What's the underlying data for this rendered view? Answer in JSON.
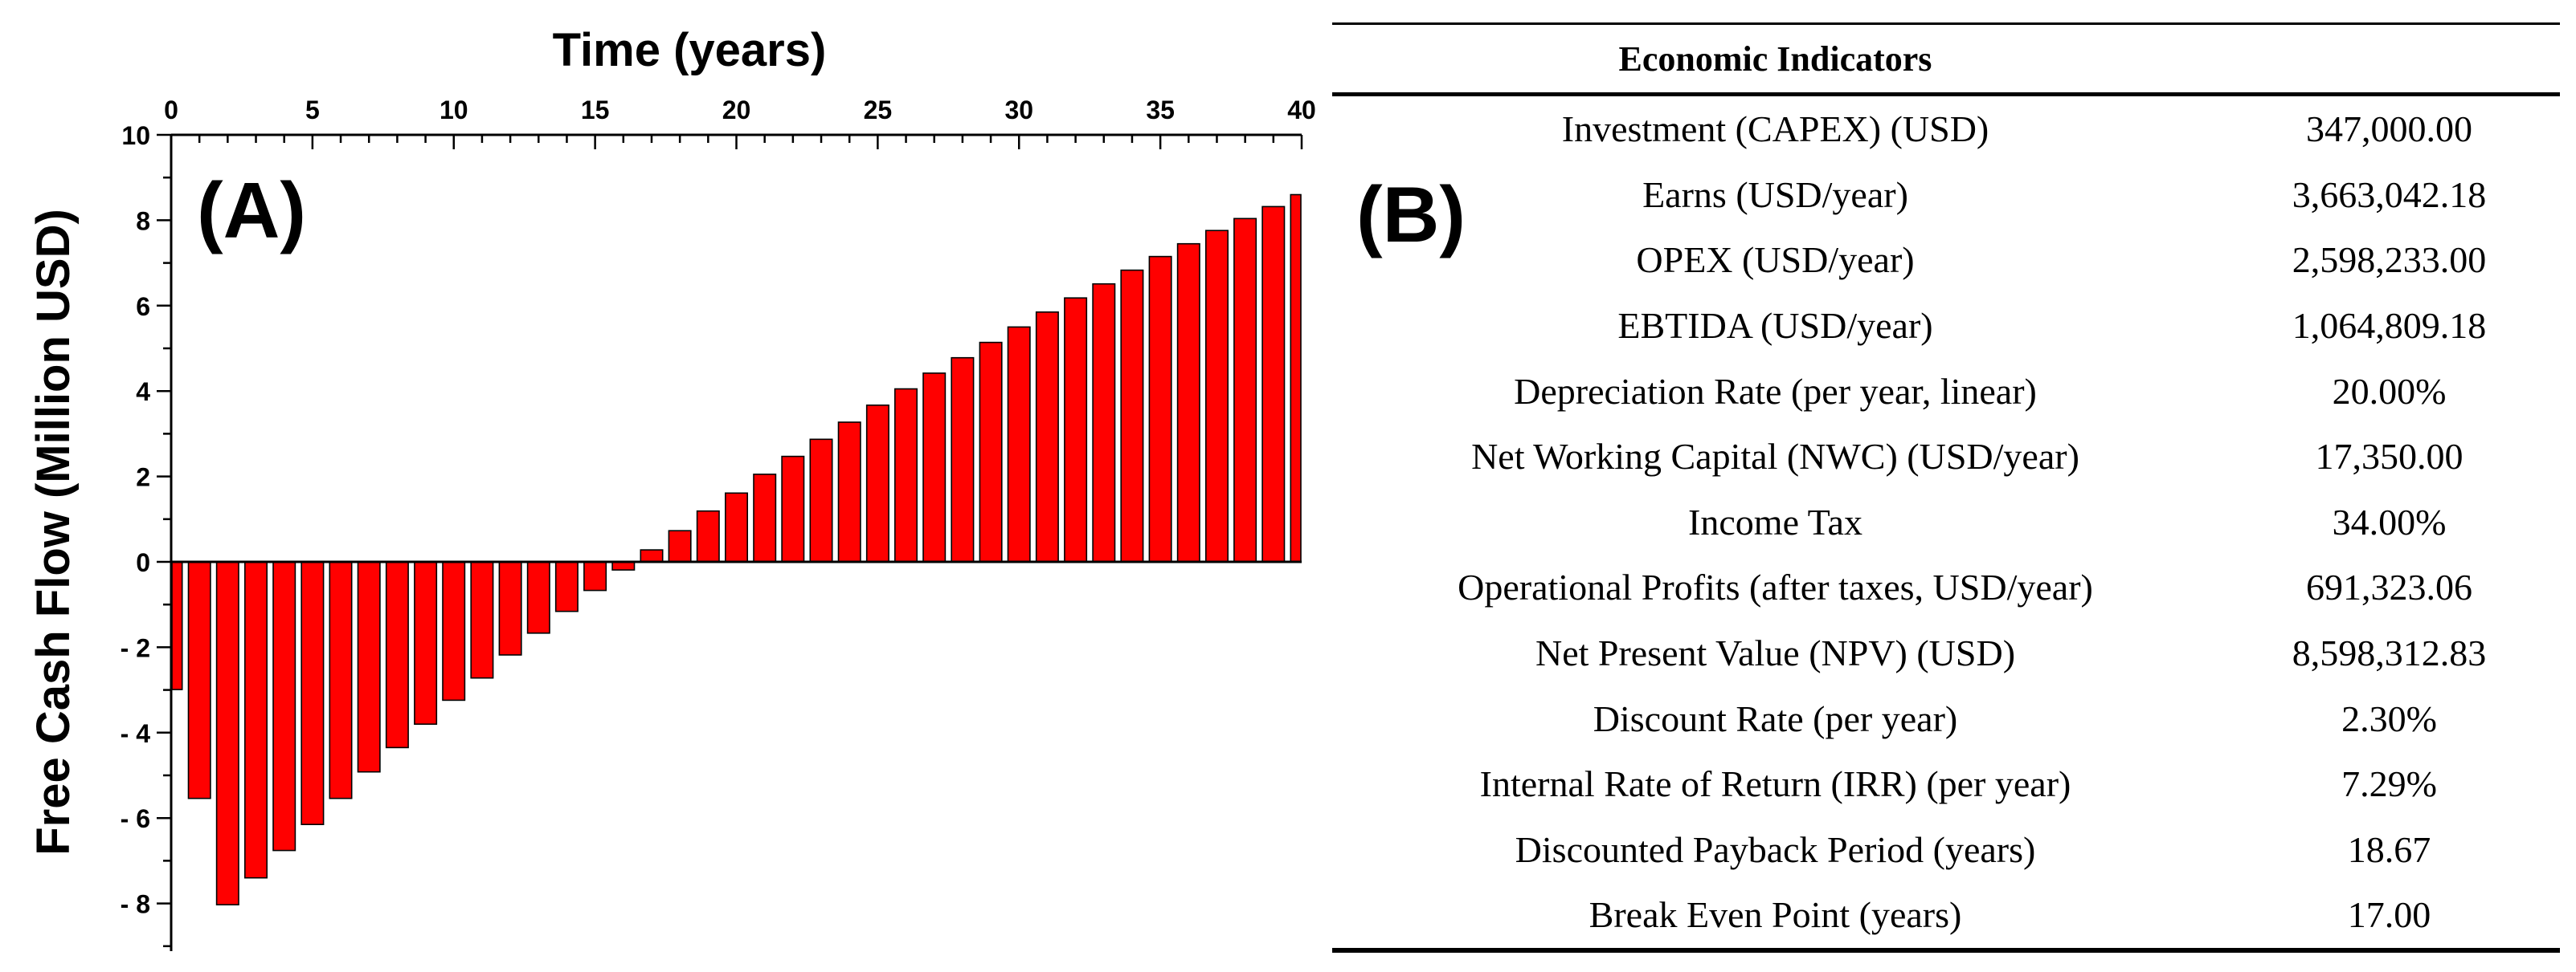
{
  "chart_data": {
    "type": "bar",
    "panel_label": "(A)",
    "title": "Time (years)",
    "ylabel": "Free Cash Flow (Million USD)",
    "x_axis_position": "top",
    "xlim": [
      0,
      40
    ],
    "ylim": [
      -9,
      10
    ],
    "x_ticks": [
      "0",
      "5",
      "10",
      "15",
      "20",
      "25",
      "30",
      "35",
      "40"
    ],
    "y_ticks": [
      "10",
      "8",
      "6",
      "4",
      "2",
      "0",
      "- 2",
      "- 4",
      "- 6",
      "- 8"
    ],
    "bar_color": "#ff0000",
    "x": [
      0,
      1,
      2,
      3,
      4,
      5,
      6,
      7,
      8,
      9,
      10,
      11,
      12,
      13,
      14,
      15,
      16,
      17,
      18,
      19,
      20,
      21,
      22,
      23,
      24,
      25,
      26,
      27,
      28,
      29,
      30,
      31,
      32,
      33,
      34,
      35,
      36,
      37,
      38,
      39,
      40
    ],
    "values": [
      -2.99,
      -5.54,
      -8.03,
      -7.4,
      -6.76,
      -6.15,
      -5.54,
      -4.92,
      -4.35,
      -3.8,
      -3.24,
      -2.72,
      -2.18,
      -1.67,
      -1.16,
      -0.67,
      -0.19,
      0.28,
      0.73,
      1.19,
      1.61,
      2.05,
      2.47,
      2.87,
      3.27,
      3.67,
      4.05,
      4.42,
      4.78,
      5.14,
      5.5,
      5.85,
      6.18,
      6.51,
      6.83,
      7.15,
      7.45,
      7.76,
      8.04,
      8.32,
      8.6
    ]
  },
  "table": {
    "panel_label": "(B)",
    "header": "Economic Indicators",
    "rows": [
      {
        "name": "Investment (CAPEX) (USD)",
        "value": "347,000.00"
      },
      {
        "name": "Earns (USD/year)",
        "value": "3,663,042.18"
      },
      {
        "name": "OPEX (USD/year)",
        "value": "2,598,233.00"
      },
      {
        "name": "EBTIDA (USD/year)",
        "value": "1,064,809.18"
      },
      {
        "name": "Depreciation Rate (per year, linear)",
        "value": "20.00%"
      },
      {
        "name": "Net Working Capital (NWC) (USD/year)",
        "value": "17,350.00"
      },
      {
        "name": "Income Tax",
        "value": "34.00%"
      },
      {
        "name": "Operational Profits (after taxes, USD/year)",
        "value": "691,323.06"
      },
      {
        "name": "Net Present Value (NPV) (USD)",
        "value": "8,598,312.83"
      },
      {
        "name": "Discount Rate (per year)",
        "value": "2.30%"
      },
      {
        "name": "Internal Rate of Return (IRR) (per year)",
        "value": "7.29%"
      },
      {
        "name": "Discounted Payback Period (years)",
        "value": "18.67"
      },
      {
        "name": "Break Even Point (years)",
        "value": "17.00"
      }
    ]
  }
}
